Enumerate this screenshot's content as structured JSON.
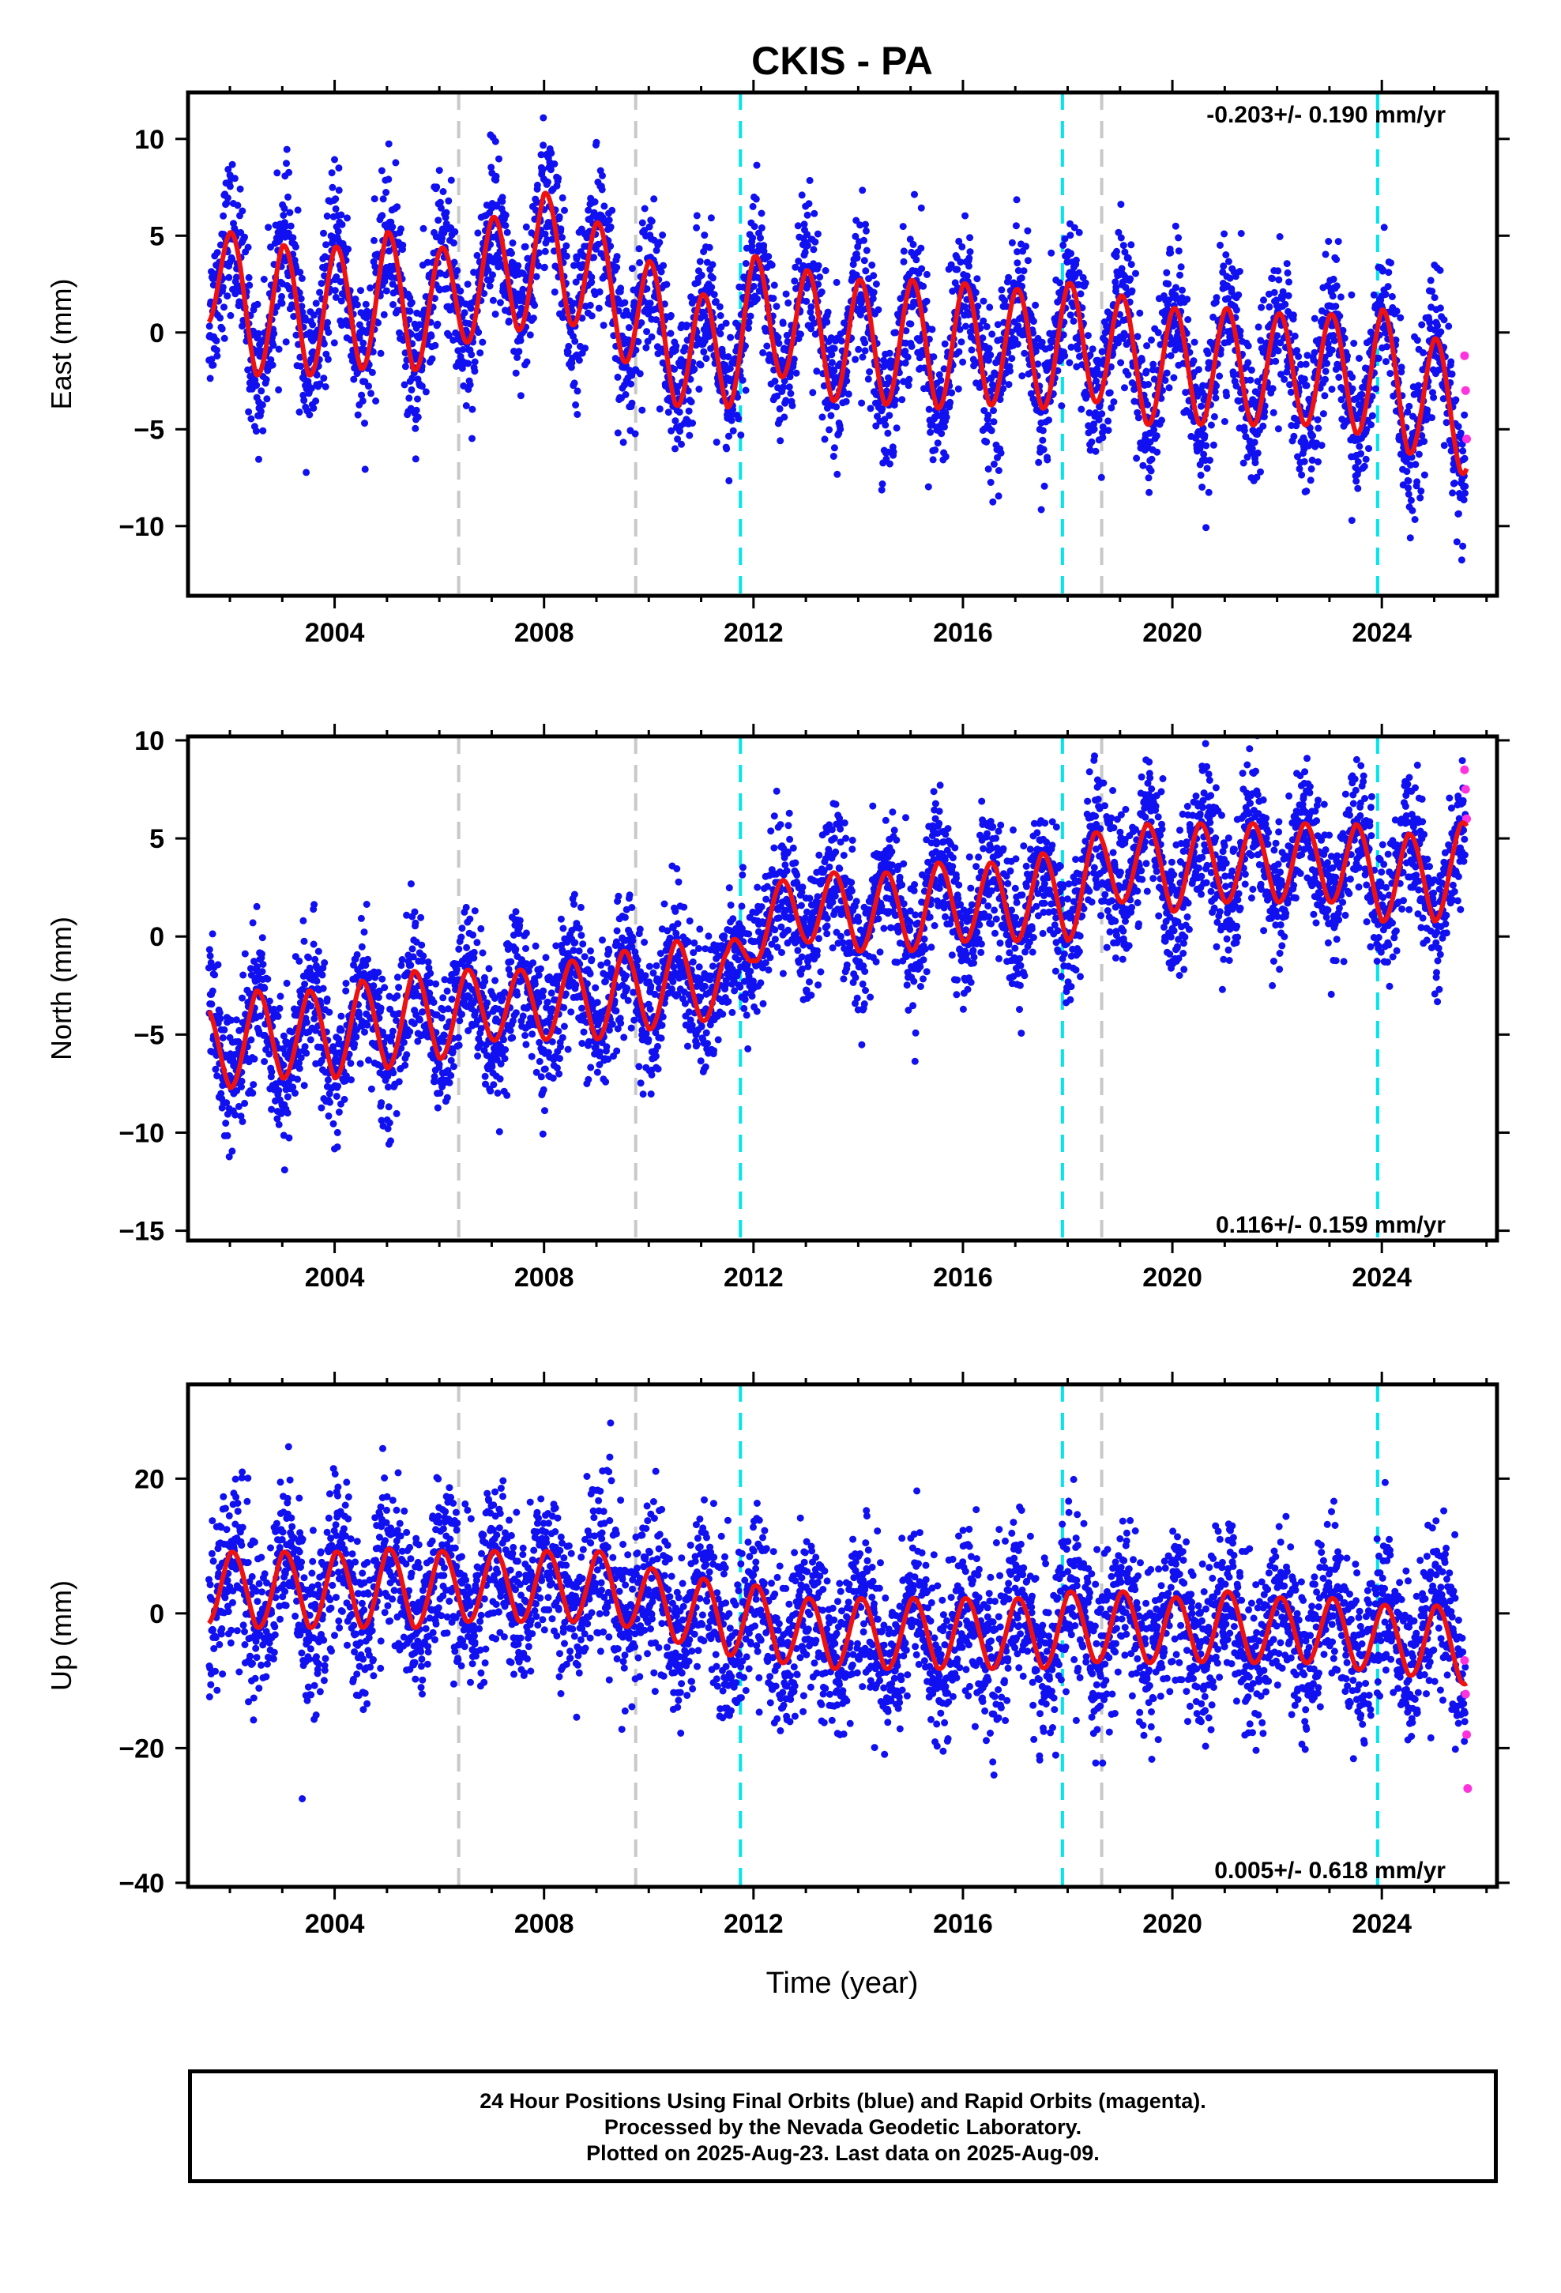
{
  "title": "CKIS - PA",
  "xlabel": "Time (year)",
  "colors": {
    "final_orbits": "#1010f0",
    "rapid_orbits": "#ff33dd",
    "model_fit": "#ee1111",
    "equipment_change_line": "#c8c8c8",
    "event_line": "#00e5ee"
  },
  "vertical_lines": {
    "gray": [
      2006.37,
      2009.75,
      2018.65
    ],
    "cyan": [
      2011.75,
      2017.9,
      2023.92
    ]
  },
  "chart_data": [
    {
      "type": "scatter",
      "name": "east",
      "ylabel": "East (mm)",
      "xlim": [
        2001.2,
        2026.2
      ],
      "ylim": [
        -13.6,
        12.4
      ],
      "xticks": [
        "2004",
        "2008",
        "2012",
        "2016",
        "2020",
        "2024"
      ],
      "yticks": [
        "10",
        "5",
        "0",
        "−5",
        "−10"
      ],
      "rate_label": "-0.203+/- 0.190 mm/yr",
      "rate_mm_per_yr": -0.203,
      "rate_uncertainty": 0.19,
      "series": [
        {
          "name": "Final Orbits (blue)",
          "x": [
            2001.6,
            2002.0,
            2002.5,
            2003.0,
            2003.5,
            2004.0,
            2004.5,
            2005.0,
            2005.5,
            2006.0,
            2006.5,
            2007.0,
            2007.5,
            2008.0,
            2008.5,
            2009.0,
            2009.5,
            2010.0,
            2010.5,
            2011.0,
            2011.5,
            2012.0,
            2012.5,
            2013.0,
            2013.5,
            2014.0,
            2014.5,
            2015.0,
            2015.5,
            2016.0,
            2016.5,
            2017.0,
            2017.5,
            2018.0,
            2018.5,
            2019.0,
            2019.5,
            2020.0,
            2020.5,
            2021.0,
            2021.5,
            2022.0,
            2022.5,
            2023.0,
            2023.5,
            2024.0,
            2024.5,
            2025.0,
            2025.5
          ],
          "y": [
            3.2,
            2.5,
            0.5,
            1.8,
            0.5,
            1.7,
            0.8,
            2.5,
            0.8,
            1.5,
            2.2,
            3.2,
            2.8,
            4.5,
            3.2,
            3.0,
            1.3,
            1.0,
            -1.0,
            -0.8,
            -1.2,
            1.2,
            0.5,
            0.5,
            -0.8,
            0.0,
            -1.0,
            0.0,
            -1.2,
            -0.2,
            -1.0,
            -0.5,
            -1.2,
            -0.2,
            -0.8,
            -0.8,
            -2.0,
            -1.5,
            -2.0,
            -1.5,
            -2.0,
            -1.8,
            -2.0,
            -1.8,
            -2.5,
            -1.5,
            -3.5,
            -3.0,
            -4.5
          ]
        },
        {
          "name": "Rapid Orbits (magenta)",
          "x": [
            2025.58,
            2025.6,
            2025.62
          ],
          "y": [
            -1.2,
            -3.0,
            -5.5
          ]
        },
        {
          "name": "Model",
          "type": "line"
        }
      ]
    },
    {
      "type": "scatter",
      "name": "north",
      "ylabel": "North (mm)",
      "xlim": [
        2001.2,
        2026.2
      ],
      "ylim": [
        -15.5,
        10.2
      ],
      "xticks": [
        "2004",
        "2008",
        "2012",
        "2016",
        "2020",
        "2024"
      ],
      "yticks": [
        "10",
        "5",
        "0",
        "−5",
        "−10",
        "−15"
      ],
      "rate_label": "0.116+/- 0.159 mm/yr",
      "rate_mm_per_yr": 0.116,
      "rate_uncertainty": 0.159,
      "series": [
        {
          "name": "Final Orbits (blue)",
          "x": [
            2001.6,
            2002.0,
            2002.5,
            2003.0,
            2003.5,
            2004.0,
            2004.5,
            2005.0,
            2005.5,
            2006.0,
            2006.5,
            2007.0,
            2007.5,
            2008.0,
            2008.5,
            2009.0,
            2009.5,
            2010.0,
            2010.5,
            2011.0,
            2011.5,
            2012.0,
            2012.5,
            2013.0,
            2013.5,
            2014.0,
            2014.5,
            2015.0,
            2015.5,
            2016.0,
            2016.5,
            2017.0,
            2017.5,
            2018.0,
            2018.5,
            2019.0,
            2019.5,
            2020.0,
            2020.5,
            2021.0,
            2021.5,
            2022.0,
            2022.5,
            2023.0,
            2023.5,
            2024.0,
            2024.5,
            2025.0,
            2025.5
          ],
          "y": [
            -5.5,
            -6.0,
            -4.5,
            -5.5,
            -4.5,
            -5.5,
            -4.0,
            -5.0,
            -3.5,
            -4.5,
            -3.5,
            -3.5,
            -3.5,
            -3.5,
            -3.0,
            -3.5,
            -2.5,
            -3.0,
            -2.0,
            -2.5,
            -2.5,
            0.5,
            1.0,
            1.5,
            1.5,
            1.0,
            1.5,
            1.0,
            2.0,
            1.5,
            2.0,
            1.5,
            2.5,
            1.5,
            3.5,
            3.5,
            4.0,
            3.0,
            4.0,
            3.5,
            4.0,
            3.5,
            4.0,
            3.5,
            4.0,
            2.5,
            3.5,
            2.5,
            4.0
          ]
        },
        {
          "name": "Rapid Orbits (magenta)",
          "x": [
            2025.58,
            2025.6,
            2025.62
          ],
          "y": [
            8.5,
            7.5,
            6.0
          ]
        },
        {
          "name": "Model",
          "type": "line"
        }
      ]
    },
    {
      "type": "scatter",
      "name": "up",
      "ylabel": "Up (mm)",
      "xlim": [
        2001.2,
        2026.2
      ],
      "ylim": [
        -40.6,
        34.0
      ],
      "xticks": [
        "2004",
        "2008",
        "2012",
        "2016",
        "2020",
        "2024"
      ],
      "yticks": [
        "20",
        "0",
        "−20",
        "−40"
      ],
      "rate_label": "0.005+/- 0.618 mm/yr",
      "rate_mm_per_yr": 0.005,
      "rate_uncertainty": 0.618,
      "series": [
        {
          "name": "Final Orbits (blue)",
          "x": [
            2001.6,
            2002.0,
            2002.5,
            2003.0,
            2003.5,
            2004.0,
            2004.5,
            2005.0,
            2005.5,
            2006.0,
            2006.5,
            2007.0,
            2007.5,
            2008.0,
            2008.5,
            2009.0,
            2009.5,
            2010.0,
            2010.5,
            2011.0,
            2011.5,
            2012.0,
            2012.5,
            2013.0,
            2013.5,
            2014.0,
            2014.5,
            2015.0,
            2015.5,
            2016.0,
            2016.5,
            2017.0,
            2017.5,
            2018.0,
            2018.5,
            2019.0,
            2019.5,
            2020.0,
            2020.5,
            2021.0,
            2021.5,
            2022.0,
            2022.5,
            2023.0,
            2023.5,
            2024.0,
            2024.5,
            2025.0,
            2025.5
          ],
          "y": [
            3.0,
            5.0,
            2.0,
            5.0,
            2.0,
            5.0,
            2.0,
            5.5,
            2.0,
            5.0,
            3.0,
            5.0,
            3.0,
            5.0,
            3.0,
            5.0,
            2.5,
            2.5,
            0.0,
            1.0,
            -2.0,
            0.0,
            -3.0,
            -2.0,
            -4.0,
            -2.0,
            -4.0,
            -2.0,
            -4.0,
            -2.0,
            -4.0,
            -2.0,
            -4.0,
            -1.0,
            -3.0,
            -1.0,
            -3.0,
            -2.0,
            -3.0,
            -1.0,
            -3.0,
            -2.0,
            -3.0,
            -2.0,
            -4.0,
            -3.0,
            -5.0,
            -3.0,
            -6.0
          ]
        },
        {
          "name": "Rapid Orbits (magenta)",
          "x": [
            2025.58,
            2025.6,
            2025.62,
            2025.64
          ],
          "y": [
            -7.0,
            -12.0,
            -18.0,
            -26.0
          ]
        },
        {
          "name": "Model",
          "type": "line"
        }
      ]
    }
  ],
  "footer": {
    "line1": "24 Hour Positions Using Final Orbits (blue) and Rapid Orbits (magenta).",
    "line2": "Processed by the Nevada Geodetic Laboratory.",
    "line3": "Plotted on 2025-Aug-23. Last data on 2025-Aug-09."
  }
}
